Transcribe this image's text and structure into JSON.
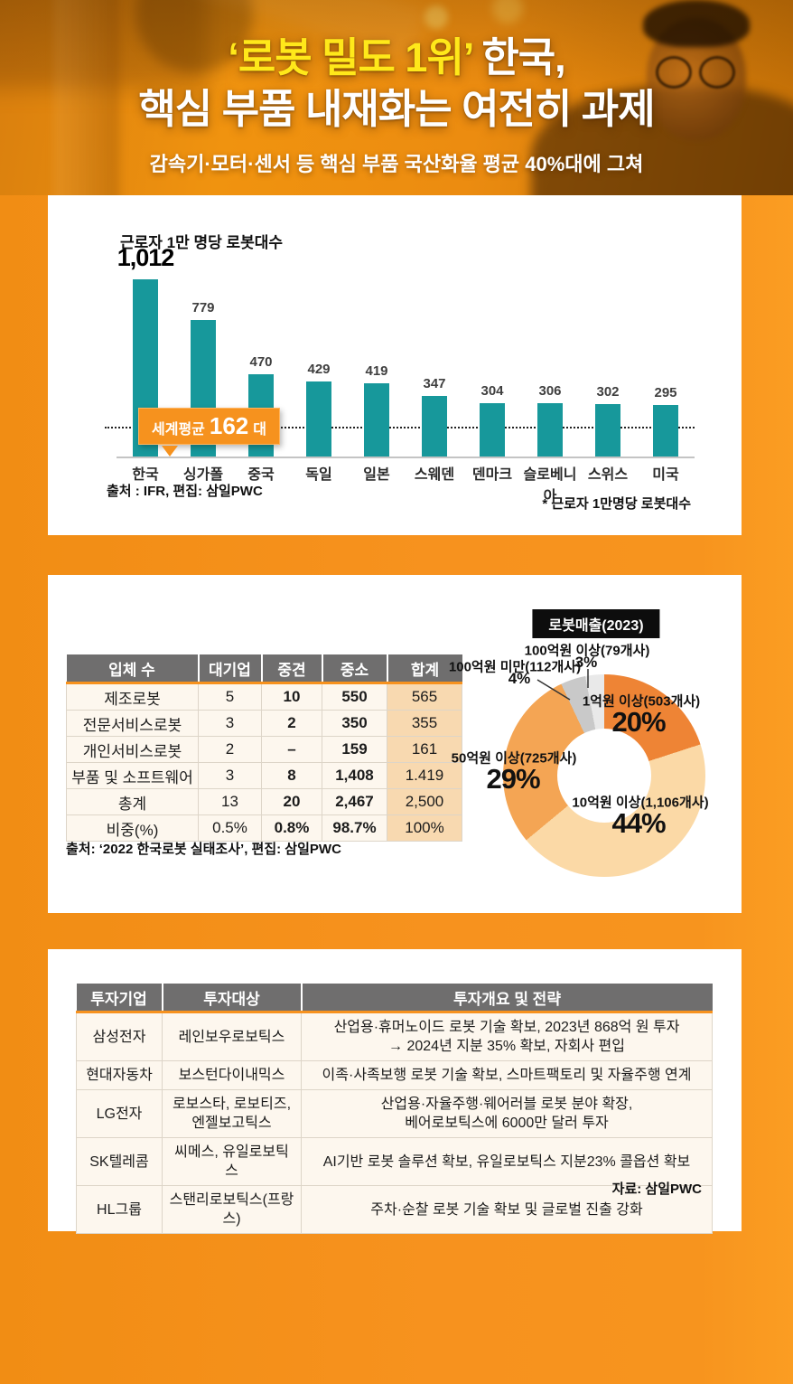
{
  "header": {
    "title_line1_highlight": "‘로봇 밀도 1위’",
    "title_line1_rest": " 한국,",
    "title_line2": "핵심 부품 내재화는 여전히 과제",
    "subtitle": "감속기·모터·센서 등 핵심 부품 국산화율 평균 40%대에 그쳐"
  },
  "colors": {
    "page_bg": "#f7941e",
    "title_highlight": "#ffe81a",
    "bar": "#17989b",
    "avg_box_bg": "#f6921e",
    "table_header_bg": "#6f6e6e",
    "table_row_bg": "#fdf7ee",
    "table_total_col_bg": "#f8d9b0"
  },
  "chart_data": [
    {
      "id": "robot_density_bar",
      "type": "bar",
      "title": "근로자 1만 명당 로봇대수",
      "categories": [
        "한국",
        "싱가폴",
        "중국",
        "독일",
        "일본",
        "스웨덴",
        "덴마크",
        "슬로베니아",
        "스위스",
        "미국"
      ],
      "values": [
        1012,
        779,
        470,
        429,
        419,
        347,
        304,
        306,
        302,
        295
      ],
      "value_labels": [
        "1,012",
        "779",
        "470",
        "429",
        "419",
        "347",
        "304",
        "306",
        "302",
        "295"
      ],
      "ylim": [
        0,
        1012
      ],
      "grid": false,
      "bar_color": "#17989b",
      "reference_line": {
        "label": "세계평균",
        "value": 162,
        "value_label": "162",
        "suffix": "대",
        "style": "dotted"
      },
      "source": "출처 : IFR, 편집: 삼일PWC",
      "note": "* 근로자 1만명당 로봇대수"
    },
    {
      "id": "company_count_table",
      "type": "table",
      "headers": [
        "입체 수",
        "대기업",
        "중견",
        "중소",
        "합계"
      ],
      "rows": [
        [
          "제조로봇",
          "5",
          "10",
          "550",
          "565"
        ],
        [
          "전문서비스로봇",
          "3",
          "2",
          "350",
          "355"
        ],
        [
          "개인서비스로봇",
          "2",
          "–",
          "159",
          "161"
        ],
        [
          "부품 및 소프트웨어",
          "3",
          "8",
          "1,408",
          "1.419"
        ],
        [
          "총계",
          "13",
          "20",
          "2,467",
          "2,500"
        ],
        [
          "비중(%)",
          "0.5%",
          "0.8%",
          "98.7%",
          "100%"
        ]
      ],
      "source": "출처:  ‘2022 한국로봇 실태조사’, 편집: 삼일PWC"
    },
    {
      "id": "robot_sales_donut",
      "type": "pie",
      "donut": true,
      "title": "로봇매출(2023)",
      "slices": [
        {
          "label": "1억원 이상(503개사)",
          "pct_label": "20%",
          "value": 20,
          "color": "#ee8435"
        },
        {
          "label": "10억원 이상(1,106개사)",
          "pct_label": "44%",
          "value": 44,
          "color": "#fbd9a6"
        },
        {
          "label": "50억원 이상(725개사)",
          "pct_label": "29%",
          "value": 29,
          "color": "#f4a554"
        },
        {
          "label": "100억원 미만(112개사)",
          "pct_label": "4%",
          "value": 4,
          "color": "#c9c9c9"
        },
        {
          "label": "100억원 이상(79개사)",
          "pct_label": "3%",
          "value": 3,
          "color": "#e9e9e9"
        }
      ],
      "legend_position": "around"
    },
    {
      "id": "investment_table",
      "type": "table",
      "headers": [
        "투자기업",
        "투자대상",
        "투자개요 및 전략"
      ],
      "rows": [
        [
          "삼성전자",
          "레인보우로보틱스",
          "산업용·휴머노이드 로봇 기술 확보, 2023년 868억 원 투자\n→ 2024년 지분 35% 확보, 자회사 편입"
        ],
        [
          "현대자동차",
          "보스턴다이내믹스",
          "이족·사족보행 로봇 기술 확보, 스마트팩토리 및 자율주행 연계"
        ],
        [
          "LG전자",
          "로보스타, 로보티즈,\n엔젤보고틱스",
          "산업용·자율주행·웨어러블 로봇 분야 확장,\n베어로보틱스에 6000만 달러 투자"
        ],
        [
          "SK텔레콤",
          "씨메스, 유일로보틱스",
          "AI기반 로봇 솔루션 확보, 유일로보틱스 지분23% 콜옵션 확보"
        ],
        [
          "HL그룹",
          "스탠리로보틱스(프랑스)",
          "주차·순찰 로봇 기술 확보 및 글로벌 진출 강화"
        ]
      ],
      "source": "자료: 삼일PWC"
    }
  ]
}
